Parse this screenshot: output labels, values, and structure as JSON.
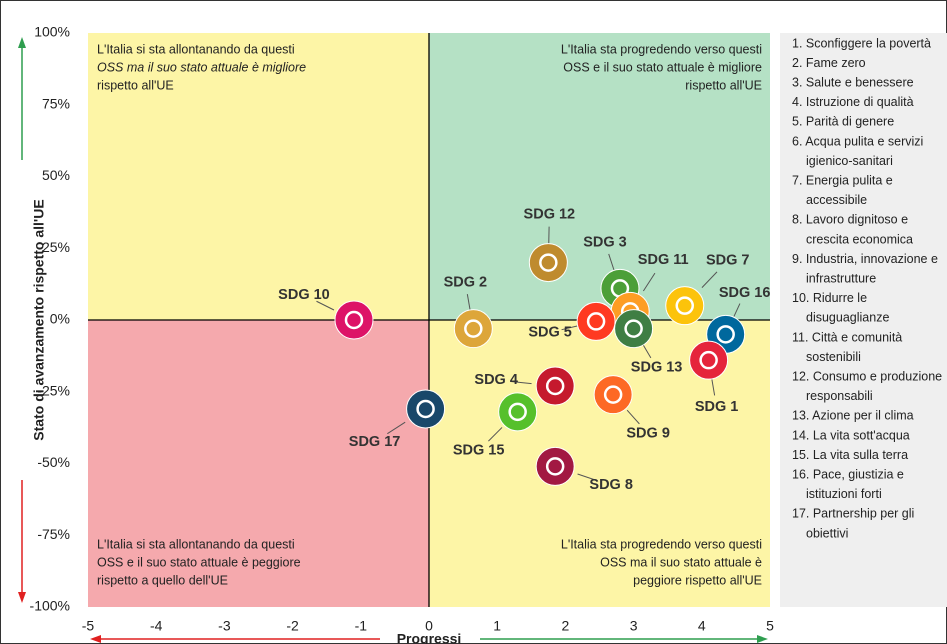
{
  "chart_data": {
    "type": "scatter",
    "xlabel": "Progressi",
    "ylabel": "Stato di avanzamento rispetto all'UE",
    "xlim": [
      -5,
      5
    ],
    "xticks": [
      -5,
      -4,
      -3,
      -2,
      -1,
      0,
      1,
      2,
      3,
      4,
      5
    ],
    "ylim": [
      -100,
      100
    ],
    "yticks": [
      {
        "value": -100,
        "label": "-100%"
      },
      {
        "value": -75,
        "label": "-75%"
      },
      {
        "value": -50,
        "label": "-50%"
      },
      {
        "value": -25,
        "label": "-25%"
      },
      {
        "value": 0,
        "label": "0%"
      },
      {
        "value": 25,
        "label": "25%"
      },
      {
        "value": 50,
        "label": "50%"
      },
      {
        "value": 75,
        "label": "75%"
      },
      {
        "value": 100,
        "label": "100%"
      }
    ],
    "quadrant_colors": {
      "top_left": "#fdf5a6",
      "top_right": "#b5e1c5",
      "bottom_left": "#f5a9ad",
      "bottom_right": "#fdf5a6"
    },
    "annotations": {
      "top_left": [
        "L'Italia si sta allontanando da questi",
        "OSS ma il suo stato attuale è migliore",
        "rispetto all'UE"
      ],
      "top_right": [
        "L'Italia sta progredendo verso questi",
        "OSS e il suo stato attuale è migliore",
        "rispetto all'UE"
      ],
      "bottom_left": [
        "L'Italia si sta allontanando da questi",
        "OSS e il suo stato attuale è peggiore",
        "rispetto a quello dell'UE"
      ],
      "bottom_right": [
        "L'Italia sta progredendo verso questi",
        "OSS ma il suo stato attuale è",
        "peggiore rispetto all'UE"
      ]
    },
    "point_labels": [
      "SDG 10",
      "SDG 17",
      "SDG 2",
      "SDG 12",
      "SDG 3",
      "SDG 11",
      "SDG 5",
      "SDG 13",
      "SDG 7",
      "SDG 16",
      "SDG 1",
      "SDG 4",
      "SDG 9",
      "SDG 15",
      "SDG 8"
    ],
    "x": [
      -1.1,
      -0.05,
      0.65,
      1.75,
      2.8,
      2.95,
      2.45,
      3.0,
      3.75,
      4.35,
      4.1,
      1.85,
      2.7,
      1.3,
      1.85
    ],
    "values": [
      0,
      -31,
      -3,
      20,
      11,
      3,
      -0.5,
      -3,
      5,
      -5,
      -14,
      -23,
      -26,
      -32,
      -51
    ],
    "colors": [
      "#dd1367",
      "#19486a",
      "#dda63a",
      "#bf8b2e",
      "#4c9f38",
      "#fd9d24",
      "#ff3a21",
      "#3f7e44",
      "#fcc30b",
      "#00689d",
      "#e5243b",
      "#c5192d",
      "#fd6925",
      "#56c02b",
      "#a21942"
    ],
    "legend": [
      [
        "1. Sconfiggere la povertà"
      ],
      [
        "2. Fame zero"
      ],
      [
        "3. Salute e benessere"
      ],
      [
        "4. Istruzione di qualità"
      ],
      [
        "5. Parità di genere"
      ],
      [
        "6. Acqua pulita e servizi",
        "igienico-sanitari"
      ],
      [
        "7. Energia pulita e",
        "accessibile"
      ],
      [
        "8. Lavoro dignitoso e",
        "crescita economica"
      ],
      [
        "9. Industria, innovazione e",
        "infrastrutture"
      ],
      [
        "10. Ridurre le",
        "disuguaglianze"
      ],
      [
        "11. Città e comunità",
        "sostenibili"
      ],
      [
        "12. Consumo e produzione",
        "responsabili"
      ],
      [
        "13. Azione per il clima"
      ],
      [
        "14. La vita sott'acqua"
      ],
      [
        "15. La vita sulla terra"
      ],
      [
        "16. Pace, giustizia e",
        "istituzioni forti"
      ],
      [
        "17. Partnership per gli",
        "obiettivi"
      ]
    ]
  }
}
